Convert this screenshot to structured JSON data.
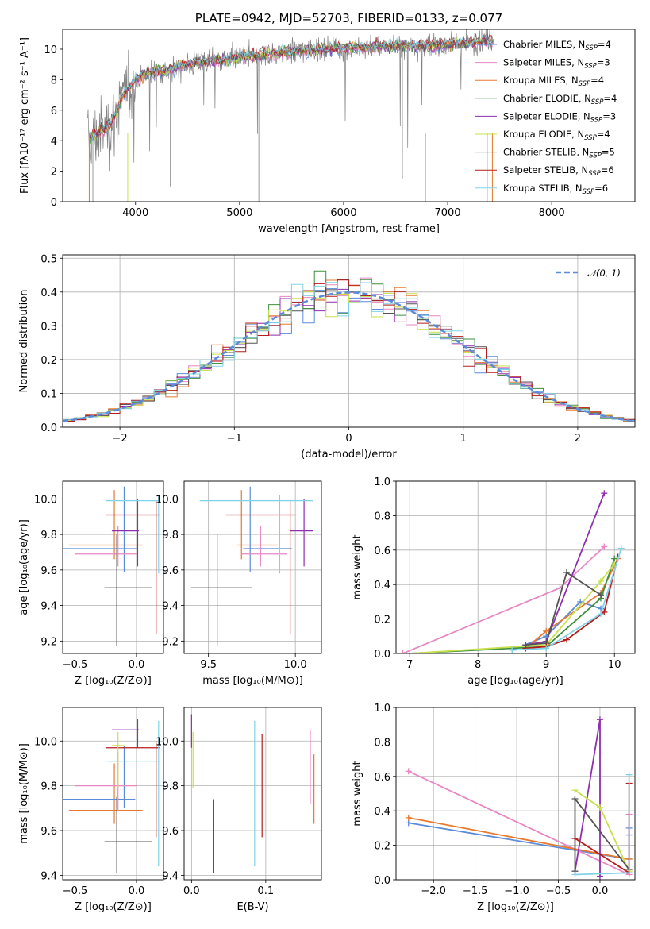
{
  "chart_data": [
    {
      "type": "line",
      "panel": "spectrum",
      "title": "PLATE=0942, MJD=52703, FIBERID=0133, z=0.077",
      "xlabel": "wavelength [Angstrom, rest frame]",
      "ylabel": "Flux [fλ10⁻¹⁷ erg cm⁻² s⁻¹ A⁻¹]",
      "xlim": [
        3300,
        8800
      ],
      "ylim": [
        0,
        11.3
      ],
      "xticks": [
        "4000",
        "5000",
        "6000",
        "7000",
        "8000"
      ],
      "yticks": [
        "0",
        "2",
        "4",
        "6",
        "8",
        "10"
      ],
      "grid": false,
      "legend_position": "upper-right",
      "legend_entries": [
        {
          "label": "Chabrier MILES, N",
          "sub": "SSP",
          "suffix": "=4"
        },
        {
          "label": "Salpeter MILES, N",
          "sub": "SSP",
          "suffix": "=3"
        },
        {
          "label": "Kroupa MILES, N",
          "sub": "SSP",
          "suffix": "=4"
        },
        {
          "label": "Chabrier ELODIE, N",
          "sub": "SSP",
          "suffix": "=4"
        },
        {
          "label": "Salpeter ELODIE, N",
          "sub": "SSP",
          "suffix": "=3"
        },
        {
          "label": "Kroupa ELODIE, N",
          "sub": "SSP",
          "suffix": "=4"
        },
        {
          "label": "Chabrier STELIB, N",
          "sub": "SSP",
          "suffix": "=5"
        },
        {
          "label": "Salpeter STELIB, N",
          "sub": "SSP",
          "suffix": "=6"
        },
        {
          "label": "Kroupa STELIB, N",
          "sub": "SSP",
          "suffix": "=6"
        }
      ],
      "data_color": "#808080",
      "series": [
        {
          "name": "data",
          "x": [
            3550,
            3600,
            3650,
            3700,
            3750,
            3800,
            3850,
            3900,
            3950,
            4000,
            4100,
            4200,
            4300,
            4400,
            4500,
            4600,
            4700,
            4800,
            4900,
            5000,
            5200,
            5400,
            5600,
            5800,
            6000,
            6200,
            6400,
            6600,
            6800,
            7000,
            7200,
            7400
          ],
          "y": [
            4.0,
            4.2,
            4.5,
            4.6,
            4.9,
            5.4,
            6.3,
            7.0,
            7.5,
            7.9,
            8.3,
            8.5,
            8.4,
            8.8,
            9.0,
            9.1,
            9.2,
            9.2,
            9.3,
            9.5,
            9.6,
            9.8,
            9.9,
            10.0,
            10.1,
            10.1,
            10.2,
            10.2,
            10.2,
            10.3,
            10.4,
            10.6
          ]
        },
        {
          "name": "model",
          "x": [
            3550,
            3600,
            3650,
            3700,
            3750,
            3800,
            3850,
            3900,
            3950,
            4000,
            4100,
            4200,
            4300,
            4400,
            4500,
            4600,
            4700,
            4800,
            4900,
            5000,
            5200,
            5400,
            5600,
            5800,
            6000,
            6200,
            6400,
            6600,
            6800,
            7000,
            7200,
            7400
          ],
          "y": [
            4.2,
            4.3,
            4.6,
            4.7,
            5.0,
            5.6,
            6.5,
            7.2,
            7.6,
            8.0,
            8.4,
            8.6,
            8.5,
            8.9,
            9.0,
            9.2,
            9.2,
            9.3,
            9.3,
            9.5,
            9.6,
            9.8,
            9.9,
            10.0,
            10.1,
            10.1,
            10.2,
            10.2,
            10.2,
            10.3,
            10.4,
            10.6
          ]
        }
      ]
    },
    {
      "type": "line",
      "panel": "residual-histogram",
      "xlabel": "(data-model)/error",
      "ylabel": "Normed distribution",
      "xlim": [
        -2.5,
        2.5
      ],
      "ylim": [
        0,
        0.51
      ],
      "xticks": [
        "−2",
        "−1",
        "0",
        "1",
        "2"
      ],
      "yticks": [
        "0.0",
        "0.1",
        "0.2",
        "0.3",
        "0.4",
        "0.5"
      ],
      "grid": true,
      "legend_position": "upper-right",
      "legend_label": "𝒩(0, 1)",
      "normal_color": "#5b8bd9",
      "bin_width": 0.1
    },
    {
      "type": "scatter",
      "panel": "age-vs-metallicity",
      "xlabel": "Z [log₁₀(Z/Z⊙)]",
      "ylabel": "age  [log₁₀(age/yr)]",
      "xlim": [
        -0.6,
        0.22
      ],
      "ylim": [
        9.13,
        10.1
      ],
      "xticks": [
        "−0.5",
        "0.0"
      ],
      "yticks": [
        "9.2",
        "9.4",
        "9.6",
        "9.8",
        "10.0"
      ],
      "grid": true,
      "points": [
        {
          "x": -0.18,
          "y": 9.74,
          "xlo": -0.55,
          "xhi": 0.05,
          "ylo": 9.66,
          "yhi": 10.05,
          "color": "#e8792e"
        },
        {
          "x": -0.1,
          "y": 9.72,
          "xlo": -0.6,
          "xhi": 0.0,
          "ylo": 9.59,
          "yhi": 10.07,
          "color": "#5b8bd9"
        },
        {
          "x": -0.15,
          "y": 9.69,
          "xlo": -0.5,
          "xhi": 0.0,
          "ylo": 9.62,
          "yhi": 9.85,
          "color": "#e887c4"
        },
        {
          "x": -0.16,
          "y": 9.5,
          "xlo": -0.26,
          "xhi": 0.13,
          "ylo": 9.17,
          "yhi": 9.8,
          "color": "#555555"
        },
        {
          "x": 0.01,
          "y": 9.82,
          "xlo": -0.2,
          "xhi": 0.02,
          "ylo": 9.62,
          "yhi": 10.0,
          "color": "#8e2fae"
        },
        {
          "x": 0.16,
          "y": 9.91,
          "xlo": -0.25,
          "xhi": 0.19,
          "ylo": 9.24,
          "yhi": 9.99,
          "color": "#b71c1c"
        },
        {
          "x": 0.18,
          "y": 9.99,
          "xlo": -0.25,
          "xhi": 0.19,
          "ylo": 9.58,
          "yhi": 10.02,
          "color": "#7fd3e8"
        }
      ]
    },
    {
      "type": "scatter",
      "panel": "age-vs-mass",
      "xlabel": "mass [log₁₀(M/M⊙)]",
      "xlim": [
        9.36,
        10.15
      ],
      "ylim": [
        9.13,
        10.1
      ],
      "xticks": [
        "9.5",
        "10.0"
      ],
      "yticks": [
        "9.2",
        "9.4",
        "9.6",
        "9.8",
        "10.0"
      ],
      "grid": true,
      "points": [
        {
          "x": 9.69,
          "y": 9.74,
          "xlo": 9.66,
          "xhi": 9.9,
          "ylo": 9.66,
          "yhi": 10.05,
          "color": "#e8792e"
        },
        {
          "x": 9.74,
          "y": 9.72,
          "xlo": 9.7,
          "xhi": 9.98,
          "ylo": 9.59,
          "yhi": 10.07,
          "color": "#5b8bd9"
        },
        {
          "x": 9.8,
          "y": 9.69,
          "xlo": 9.69,
          "xhi": 9.95,
          "ylo": 9.62,
          "yhi": 9.85,
          "color": "#e887c4"
        },
        {
          "x": 9.55,
          "y": 9.5,
          "xlo": 9.4,
          "xhi": 9.75,
          "ylo": 9.17,
          "yhi": 9.8,
          "color": "#555555"
        },
        {
          "x": 10.05,
          "y": 9.82,
          "xlo": 9.97,
          "xhi": 10.1,
          "ylo": 9.62,
          "yhi": 10.0,
          "color": "#8e2fae"
        },
        {
          "x": 9.97,
          "y": 9.91,
          "xlo": 9.6,
          "xhi": 10.0,
          "ylo": 9.24,
          "yhi": 9.99,
          "color": "#b71c1c"
        },
        {
          "x": 9.91,
          "y": 9.99,
          "xlo": 9.45,
          "xhi": 10.1,
          "ylo": 9.58,
          "yhi": 10.02,
          "color": "#7fd3e8"
        }
      ]
    },
    {
      "type": "line",
      "panel": "mass-weight-vs-age",
      "xlabel": "age  [log₁₀(age/yr)]",
      "ylabel": "mass weight",
      "xlim": [
        6.8,
        10.3
      ],
      "ylim": [
        0,
        1
      ],
      "xticks": [
        "7",
        "8",
        "9",
        "10"
      ],
      "yticks": [
        "0.0",
        "0.2",
        "0.4",
        "0.6",
        "0.8",
        "1.0"
      ],
      "grid": true,
      "series": [
        {
          "name": "Chabrier MILES",
          "color": "#5b8bd9",
          "x": [
            8.5,
            9.0,
            9.5,
            9.8
          ],
          "y": [
            0.02,
            0.1,
            0.3,
            0.26
          ]
        },
        {
          "name": "Salpeter MILES",
          "color": "#e887c4",
          "x": [
            6.9,
            9.2,
            9.85
          ],
          "y": [
            0.0,
            0.38,
            0.62
          ]
        },
        {
          "name": "Kroupa MILES",
          "color": "#e8792e",
          "x": [
            8.7,
            9.0,
            9.8,
            10.05
          ],
          "y": [
            0.03,
            0.13,
            0.35,
            0.55
          ]
        },
        {
          "name": "Chabrier ELODIE",
          "color": "#3f8f3f",
          "x": [
            7.0,
            9.0,
            9.8,
            10.0
          ],
          "y": [
            0.0,
            0.04,
            0.32,
            0.55
          ]
        },
        {
          "name": "Salpeter ELODIE",
          "color": "#8e2fae",
          "x": [
            8.7,
            9.0,
            9.85
          ],
          "y": [
            0.05,
            0.07,
            0.93
          ]
        },
        {
          "name": "Kroupa ELODIE",
          "color": "#c8e04a",
          "x": [
            7.0,
            9.0,
            9.8,
            10.0
          ],
          "y": [
            0.0,
            0.05,
            0.42,
            0.52
          ]
        },
        {
          "name": "Chabrier STELIB",
          "color": "#555555",
          "x": [
            8.7,
            9.0,
            9.3,
            9.8
          ],
          "y": [
            0.05,
            0.06,
            0.47,
            0.34
          ]
        },
        {
          "name": "Salpeter STELIB",
          "color": "#b71c1c",
          "x": [
            8.7,
            9.0,
            9.3,
            9.85,
            10.05
          ],
          "y": [
            0.03,
            0.04,
            0.08,
            0.24,
            0.56
          ]
        },
        {
          "name": "Kroupa STELIB",
          "color": "#7fd3e8",
          "x": [
            8.5,
            9.0,
            9.8,
            10.1
          ],
          "y": [
            0.02,
            0.03,
            0.23,
            0.61
          ]
        }
      ]
    },
    {
      "type": "scatter",
      "panel": "mass-vs-metallicity",
      "xlabel": "Z [log₁₀(Z/Z⊙)]",
      "ylabel": "mass [log₁₀(M/M⊙)]",
      "xlim": [
        -0.6,
        0.22
      ],
      "ylim": [
        9.38,
        10.15
      ],
      "xticks": [
        "−0.5",
        "0.0"
      ],
      "yticks": [
        "9.4",
        "9.6",
        "9.8",
        "10.0"
      ],
      "grid": true,
      "points": [
        {
          "x": -0.18,
          "y": 9.69,
          "xlo": -0.55,
          "xhi": 0.05,
          "ylo": 9.63,
          "yhi": 9.9,
          "color": "#e8792e"
        },
        {
          "x": -0.1,
          "y": 9.74,
          "xlo": -0.6,
          "xhi": -0.01,
          "ylo": 9.7,
          "yhi": 9.98,
          "color": "#5b8bd9"
        },
        {
          "x": -0.15,
          "y": 9.8,
          "xlo": -0.5,
          "xhi": 0.0,
          "ylo": 9.69,
          "yhi": 9.95,
          "color": "#e887c4"
        },
        {
          "x": -0.16,
          "y": 9.55,
          "xlo": -0.26,
          "xhi": 0.13,
          "ylo": 9.41,
          "yhi": 9.75,
          "color": "#555555"
        },
        {
          "x": 0.01,
          "y": 10.05,
          "xlo": -0.2,
          "xhi": 0.02,
          "ylo": 9.97,
          "yhi": 10.1,
          "color": "#8e2fae"
        },
        {
          "x": 0.16,
          "y": 9.97,
          "xlo": -0.25,
          "xhi": 0.19,
          "ylo": 9.57,
          "yhi": 10.0,
          "color": "#b71c1c"
        },
        {
          "x": 0.18,
          "y": 9.91,
          "xlo": -0.25,
          "xhi": 0.19,
          "ylo": 9.44,
          "yhi": 10.09,
          "color": "#7fd3e8"
        },
        {
          "x": -0.15,
          "y": 9.98,
          "xlo": -0.2,
          "xhi": -0.1,
          "ylo": 9.79,
          "yhi": 10.04,
          "color": "#c8e04a"
        }
      ]
    },
    {
      "type": "scatter",
      "panel": "mass-vs-extinction",
      "xlabel": "E(B-V)",
      "xlim": [
        -0.01,
        0.175
      ],
      "ylim": [
        9.38,
        10.15
      ],
      "xticks": [
        "0.0",
        "0.1"
      ],
      "yticks": [
        "9.4",
        "9.6",
        "9.8",
        "10.0"
      ],
      "grid": true,
      "points": [
        {
          "x": 0.0,
          "y": 10.04,
          "ylo": 9.97,
          "yhi": 10.12,
          "color": "#8e2fae"
        },
        {
          "x": 0.002,
          "y": 9.9,
          "ylo": 9.79,
          "yhi": 10.04,
          "color": "#c8e04a"
        },
        {
          "x": 0.03,
          "y": 9.55,
          "ylo": 9.41,
          "yhi": 9.74,
          "color": "#555555"
        },
        {
          "x": 0.085,
          "y": 9.75,
          "ylo": 9.44,
          "yhi": 10.09,
          "color": "#7fd3e8"
        },
        {
          "x": 0.095,
          "y": 9.8,
          "ylo": 9.57,
          "yhi": 10.03,
          "color": "#b71c1c"
        },
        {
          "x": 0.16,
          "y": 9.85,
          "ylo": 9.72,
          "yhi": 10.05,
          "color": "#e887c4"
        },
        {
          "x": 0.165,
          "y": 9.8,
          "ylo": 9.63,
          "yhi": 9.94,
          "color": "#e8792e"
        }
      ]
    },
    {
      "type": "line",
      "panel": "mass-weight-vs-metallicity",
      "xlabel": "Z [log₁₀(Z/Z⊙)]",
      "ylabel": "mass weight",
      "xlim": [
        -2.45,
        0.42
      ],
      "ylim": [
        0,
        1
      ],
      "xticks": [
        "−2.0",
        "−1.5",
        "−1.0",
        "−0.5",
        "0.0"
      ],
      "yticks": [
        "0.0",
        "0.2",
        "0.4",
        "0.6",
        "0.8",
        "1.0"
      ],
      "grid": true,
      "series": [
        {
          "name": "Chabrier MILES",
          "color": "#5b8bd9",
          "x": [
            -2.3,
            0.35,
            0.35,
            0.35
          ],
          "y": [
            0.33,
            0.12,
            0.3,
            0.26
          ]
        },
        {
          "name": "Salpeter MILES",
          "color": "#e887c4",
          "x": [
            -2.3,
            0.35,
            0.35
          ],
          "y": [
            0.63,
            0.03,
            0.38
          ]
        },
        {
          "name": "Kroupa MILES",
          "color": "#e8792e",
          "x": [
            -2.3,
            0.35
          ],
          "y": [
            0.36,
            0.12
          ]
        },
        {
          "name": "Salpeter ELODIE",
          "color": "#8e2fae",
          "x": [
            -0.3,
            0.0,
            0.0
          ],
          "y": [
            0.05,
            0.93,
            0.02
          ]
        },
        {
          "name": "Kroupa ELODIE",
          "color": "#c8e04a",
          "x": [
            -0.3,
            0.0,
            0.35
          ],
          "y": [
            0.52,
            0.42,
            0.05
          ]
        },
        {
          "name": "Chabrier STELIB",
          "color": "#555555",
          "x": [
            -0.3,
            -0.3,
            0.35
          ],
          "y": [
            0.05,
            0.47,
            0.06
          ]
        },
        {
          "name": "Salpeter STELIB",
          "color": "#b71c1c",
          "x": [
            -0.3,
            0.35,
            0.35
          ],
          "y": [
            0.24,
            0.04,
            0.56
          ]
        },
        {
          "name": "Kroupa STELIB",
          "color": "#7fd3e8",
          "x": [
            -0.3,
            0.35,
            0.35
          ],
          "y": [
            0.03,
            0.04,
            0.61
          ]
        }
      ]
    }
  ],
  "series_colors": {
    "Chabrier MILES": "#5b8bd9",
    "Salpeter MILES": "#e887c4",
    "Kroupa MILES": "#e8792e",
    "Chabrier ELODIE": "#3f8f3f",
    "Salpeter ELODIE": "#8e2fae",
    "Kroupa ELODIE": "#c8e04a",
    "Chabrier STELIB": "#555555",
    "Salpeter STELIB": "#b71c1c",
    "Kroupa STELIB": "#7fd3e8"
  }
}
